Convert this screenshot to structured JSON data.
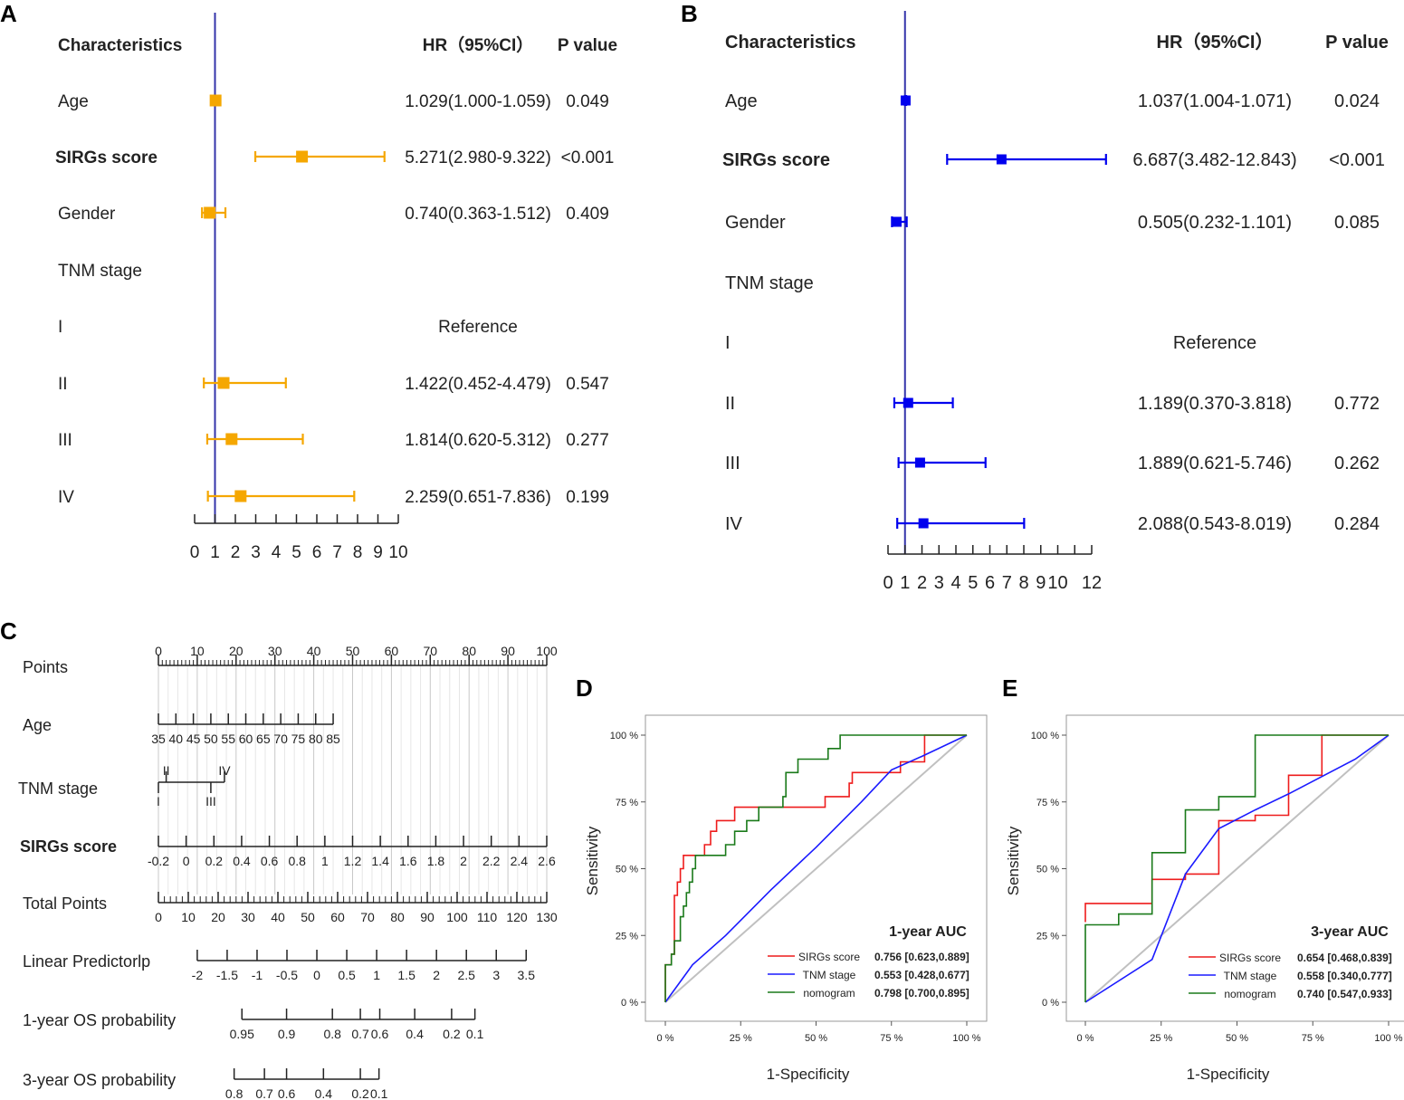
{
  "panels": {
    "A": "A",
    "B": "B",
    "C": "C",
    "D": "D",
    "E": "E"
  },
  "colors": {
    "forestA": "#f5a700",
    "forestB": "#0000ee",
    "refline": "#3333aa",
    "red": "#ee1c1c",
    "blue": "#1a1aff",
    "green": "#1a7a1a",
    "diag": "#c0c0c0",
    "grid": "#d9d9d9"
  },
  "chart_data": [
    {
      "type": "forest",
      "panel": "A",
      "headers": {
        "characteristics": "Characteristics",
        "hr": "HR（95%CI）",
        "p": "P value"
      },
      "rows": [
        {
          "label": "Age",
          "hr": 1.029,
          "lo": 1.0,
          "hi": 1.059,
          "hr_text": "1.029(1.000-1.059)",
          "p": "0.049"
        },
        {
          "label": "SIRGs score",
          "hr": 5.271,
          "lo": 2.98,
          "hi": 9.322,
          "hr_text": "5.271(2.980-9.322)",
          "p": "<0.001"
        },
        {
          "label": "Gender",
          "hr": 0.74,
          "lo": 0.363,
          "hi": 1.512,
          "hr_text": "0.740(0.363-1.512)",
          "p": "0.409"
        },
        {
          "label": "TNM stage",
          "hr_text": "",
          "p": ""
        },
        {
          "label": "I",
          "hr_text": "Reference",
          "p": ""
        },
        {
          "label": "II",
          "hr": 1.422,
          "lo": 0.452,
          "hi": 4.479,
          "hr_text": "1.422(0.452-4.479)",
          "p": "0.547"
        },
        {
          "label": "III",
          "hr": 1.814,
          "lo": 0.62,
          "hi": 5.312,
          "hr_text": "1.814(0.620-5.312)",
          "p": "0.277"
        },
        {
          "label": "IV",
          "hr": 2.259,
          "lo": 0.651,
          "hi": 7.836,
          "hr_text": "2.259(0.651-7.836)",
          "p": "0.199"
        }
      ],
      "xlim": [
        0,
        10
      ],
      "ref": 1,
      "ticks": [
        "0",
        "1",
        "2",
        "3",
        "4",
        "5",
        "6",
        "7",
        "8",
        "9",
        "10"
      ]
    },
    {
      "type": "forest",
      "panel": "B",
      "headers": {
        "characteristics": "Characteristics",
        "hr": "HR（95%CI）",
        "p": "P value"
      },
      "rows": [
        {
          "label": "Age",
          "hr": 1.037,
          "lo": 1.004,
          "hi": 1.071,
          "hr_text": "1.037(1.004-1.071)",
          "p": "0.024"
        },
        {
          "label": "SIRGs score",
          "hr": 6.687,
          "lo": 3.482,
          "hi": 12.843,
          "hr_text": "6.687(3.482-12.843)",
          "p": "<0.001"
        },
        {
          "label": "Gender",
          "hr": 0.505,
          "lo": 0.232,
          "hi": 1.101,
          "hr_text": "0.505(0.232-1.101)",
          "p": "0.085"
        },
        {
          "label": "TNM stage",
          "hr_text": "",
          "p": ""
        },
        {
          "label": "I",
          "hr_text": "Reference",
          "p": ""
        },
        {
          "label": "II",
          "hr": 1.189,
          "lo": 0.37,
          "hi": 3.818,
          "hr_text": "1.189(0.370-3.818)",
          "p": "0.772"
        },
        {
          "label": "III",
          "hr": 1.889,
          "lo": 0.621,
          "hi": 5.746,
          "hr_text": "1.889(0.621-5.746)",
          "p": "0.262"
        },
        {
          "label": "IV",
          "hr": 2.088,
          "lo": 0.543,
          "hi": 8.019,
          "hr_text": "2.088(0.543-8.019)",
          "p": "0.284"
        }
      ],
      "xlim": [
        0,
        12
      ],
      "ref": 1,
      "ticks": [
        "0",
        "1",
        "2",
        "3",
        "4",
        "5",
        "6",
        "7",
        "8",
        "9",
        "10",
        "12"
      ],
      "tick_values": [
        0,
        1,
        2,
        3,
        4,
        5,
        6,
        7,
        8,
        9,
        10,
        12
      ]
    },
    {
      "type": "nomogram",
      "panel": "C",
      "rows": [
        {
          "label": "Points",
          "ticks": [
            "0",
            "10",
            "20",
            "30",
            "40",
            "50",
            "60",
            "70",
            "80",
            "90",
            "100"
          ],
          "points": [
            0,
            10,
            20,
            30,
            40,
            50,
            60,
            70,
            80,
            90,
            100
          ],
          "minor": 1
        },
        {
          "label": "Age",
          "ticks": [
            "35",
            "40",
            "45",
            "50",
            "55",
            "60",
            "65",
            "70",
            "75",
            "80",
            "85"
          ],
          "points": [
            0,
            4.5,
            9,
            13.5,
            18,
            22.5,
            27,
            31.5,
            36,
            40.5,
            45
          ]
        },
        {
          "label": "TNM stage",
          "categories": [
            "I",
            "II",
            "III",
            "IV"
          ],
          "points": [
            0,
            2,
            13.5,
            17
          ]
        },
        {
          "label": "SIRGs score",
          "ticks": [
            "-0.2",
            "0",
            "0.2",
            "0.4",
            "0.6",
            "0.8",
            "1",
            "1.2",
            "1.4",
            "1.6",
            "1.8",
            "2",
            "2.2",
            "2.4",
            "2.6"
          ],
          "points": [
            0,
            7.14,
            14.29,
            21.43,
            28.57,
            35.71,
            42.86,
            50,
            57.14,
            64.29,
            71.43,
            78.57,
            85.71,
            92.86,
            100
          ]
        },
        {
          "label": "Total Points",
          "ticks": [
            "0",
            "10",
            "20",
            "30",
            "40",
            "50",
            "60",
            "70",
            "80",
            "90",
            "100",
            "110",
            "120",
            "130"
          ],
          "points": [
            0,
            7.69,
            15.38,
            23.08,
            30.77,
            38.46,
            46.15,
            53.85,
            61.54,
            69.23,
            76.92,
            84.62,
            92.31,
            100
          ],
          "minor": 2
        },
        {
          "label": "Linear Predictorlp",
          "ticks": [
            "-2",
            "-1.5",
            "-1",
            "-0.5",
            "0",
            "0.5",
            "1",
            "1.5",
            "2",
            "2.5",
            "3",
            "3.5"
          ],
          "points": [
            10,
            17.7,
            25.4,
            33.1,
            40.8,
            48.5,
            56.2,
            63.9,
            71.6,
            79.3,
            87,
            94.7
          ]
        },
        {
          "label": "1-year OS probability",
          "ticks": [
            "0.95",
            "0.9",
            "0.8",
            "0.7",
            "0.6",
            "0.4",
            "0.2",
            "0.1"
          ],
          "points": [
            21.5,
            33,
            44.8,
            52,
            57,
            66,
            75.5,
            81.5
          ]
        },
        {
          "label": "3-year OS probability",
          "ticks": [
            "0.8",
            "0.7",
            "0.6",
            "0.4",
            "0.2",
            "0.1"
          ],
          "points": [
            19.5,
            27.3,
            33,
            42.5,
            52,
            56.8
          ]
        }
      ]
    },
    {
      "type": "line",
      "panel": "D",
      "title": "1-year AUC",
      "xlabel": "1-Specificity",
      "ylabel": "Sensitivity",
      "xlim": [
        0,
        1
      ],
      "ylim": [
        0,
        1
      ],
      "x_ticks": [
        "0 %",
        "25 %",
        "50 %",
        "75 %",
        "100 %"
      ],
      "y_ticks": [
        "0 %",
        "25 %",
        "50 %",
        "75 %",
        "100 %"
      ],
      "series": [
        {
          "name": "SIRGs score",
          "auc": "0.756 [0.623,0.889]",
          "color": "#ee1c1c",
          "points": [
            [
              0,
              0
            ],
            [
              0,
              0.14
            ],
            [
              0.02,
              0.14
            ],
            [
              0.02,
              0.18
            ],
            [
              0.03,
              0.18
            ],
            [
              0.03,
              0.4
            ],
            [
              0.04,
              0.4
            ],
            [
              0.04,
              0.45
            ],
            [
              0.05,
              0.45
            ],
            [
              0.05,
              0.5
            ],
            [
              0.06,
              0.5
            ],
            [
              0.06,
              0.55
            ],
            [
              0.13,
              0.55
            ],
            [
              0.13,
              0.59
            ],
            [
              0.15,
              0.59
            ],
            [
              0.15,
              0.64
            ],
            [
              0.17,
              0.64
            ],
            [
              0.17,
              0.68
            ],
            [
              0.23,
              0.68
            ],
            [
              0.23,
              0.73
            ],
            [
              0.53,
              0.73
            ],
            [
              0.53,
              0.77
            ],
            [
              0.61,
              0.77
            ],
            [
              0.61,
              0.82
            ],
            [
              0.62,
              0.82
            ],
            [
              0.62,
              0.86
            ],
            [
              0.78,
              0.86
            ],
            [
              0.78,
              0.9
            ],
            [
              0.86,
              0.9
            ],
            [
              0.86,
              1
            ],
            [
              1,
              1
            ]
          ]
        },
        {
          "name": "TNM stage",
          "auc": "0.553 [0.428,0.677]",
          "color": "#1a1aff",
          "points": [
            [
              0,
              0
            ],
            [
              0.09,
              0.14
            ],
            [
              0.2,
              0.25
            ],
            [
              0.35,
              0.42
            ],
            [
              0.5,
              0.58
            ],
            [
              0.65,
              0.75
            ],
            [
              0.75,
              0.87
            ],
            [
              0.85,
              0.92
            ],
            [
              1,
              1
            ]
          ]
        },
        {
          "name": "nomogram",
          "auc": "0.798 [0.700,0.895]",
          "color": "#1a7a1a",
          "points": [
            [
              0,
              0
            ],
            [
              0,
              0.14
            ],
            [
              0.02,
              0.14
            ],
            [
              0.02,
              0.18
            ],
            [
              0.03,
              0.18
            ],
            [
              0.03,
              0.23
            ],
            [
              0.05,
              0.23
            ],
            [
              0.05,
              0.32
            ],
            [
              0.06,
              0.32
            ],
            [
              0.06,
              0.36
            ],
            [
              0.07,
              0.36
            ],
            [
              0.07,
              0.41
            ],
            [
              0.08,
              0.41
            ],
            [
              0.08,
              0.45
            ],
            [
              0.09,
              0.45
            ],
            [
              0.09,
              0.5
            ],
            [
              0.1,
              0.5
            ],
            [
              0.1,
              0.55
            ],
            [
              0.2,
              0.55
            ],
            [
              0.2,
              0.59
            ],
            [
              0.23,
              0.59
            ],
            [
              0.23,
              0.64
            ],
            [
              0.27,
              0.64
            ],
            [
              0.27,
              0.68
            ],
            [
              0.31,
              0.68
            ],
            [
              0.31,
              0.73
            ],
            [
              0.39,
              0.73
            ],
            [
              0.39,
              0.77
            ],
            [
              0.4,
              0.77
            ],
            [
              0.4,
              0.86
            ],
            [
              0.44,
              0.86
            ],
            [
              0.44,
              0.91
            ],
            [
              0.54,
              0.91
            ],
            [
              0.54,
              0.95
            ],
            [
              0.58,
              0.95
            ],
            [
              0.58,
              1
            ],
            [
              1,
              1
            ]
          ]
        }
      ]
    },
    {
      "type": "line",
      "panel": "E",
      "title": "3-year AUC",
      "xlabel": "1-Specificity",
      "ylabel": "Sensitivity",
      "xlim": [
        0,
        1
      ],
      "ylim": [
        0,
        1
      ],
      "x_ticks": [
        "0 %",
        "25 %",
        "50 %",
        "75 %",
        "100 %"
      ],
      "y_ticks": [
        "0 %",
        "25 %",
        "50 %",
        "75 %",
        "100 %"
      ],
      "series": [
        {
          "name": "SIRGs score",
          "auc": "0.654 [0.468,0.839]",
          "color": "#ee1c1c",
          "points": [
            [
              0,
              0.3
            ],
            [
              0,
              0.37
            ],
            [
              0.22,
              0.37
            ],
            [
              0.22,
              0.46
            ],
            [
              0.33,
              0.46
            ],
            [
              0.33,
              0.48
            ],
            [
              0.44,
              0.48
            ],
            [
              0.44,
              0.68
            ],
            [
              0.56,
              0.68
            ],
            [
              0.56,
              0.7
            ],
            [
              0.67,
              0.7
            ],
            [
              0.67,
              0.85
            ],
            [
              0.78,
              0.85
            ],
            [
              0.78,
              1
            ],
            [
              1,
              1
            ]
          ]
        },
        {
          "name": "TNM stage",
          "auc": "0.558 [0.340,0.777]",
          "color": "#1a1aff",
          "points": [
            [
              0,
              0
            ],
            [
              0.22,
              0.16
            ],
            [
              0.33,
              0.48
            ],
            [
              0.44,
              0.65
            ],
            [
              0.56,
              0.72
            ],
            [
              0.67,
              0.78
            ],
            [
              0.89,
              0.91
            ],
            [
              1,
              1
            ]
          ]
        },
        {
          "name": "nomogram",
          "auc": "0.740 [0.547,0.933]",
          "color": "#1a7a1a",
          "points": [
            [
              0,
              0
            ],
            [
              0,
              0.29
            ],
            [
              0.11,
              0.29
            ],
            [
              0.11,
              0.33
            ],
            [
              0.22,
              0.33
            ],
            [
              0.22,
              0.56
            ],
            [
              0.33,
              0.56
            ],
            [
              0.33,
              0.72
            ],
            [
              0.44,
              0.72
            ],
            [
              0.44,
              0.77
            ],
            [
              0.56,
              0.77
            ],
            [
              0.56,
              1
            ],
            [
              1,
              1
            ]
          ]
        }
      ]
    }
  ]
}
